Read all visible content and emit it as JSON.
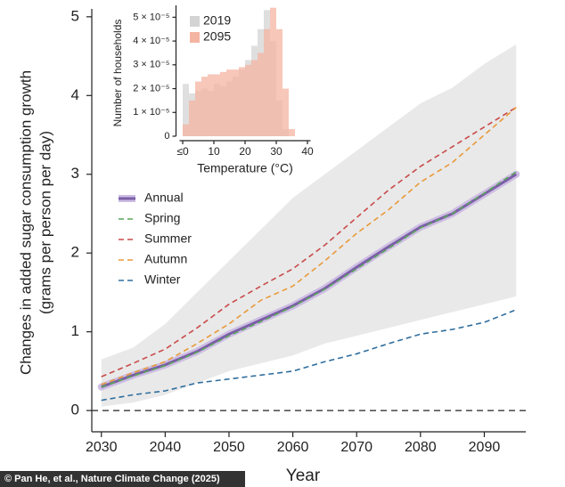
{
  "chart_data": [
    {
      "type": "line",
      "xlabel": "Year",
      "ylabel": [
        "Changes in added sugar consumption growth",
        "(grams per person per day)"
      ],
      "credit": "© Pan He, et al., Nature Climate Change (2025)",
      "x": [
        2030,
        2035,
        2040,
        2045,
        2050,
        2055,
        2060,
        2065,
        2070,
        2075,
        2080,
        2085,
        2090,
        2095
      ],
      "band": {
        "color": "#e9e9e9",
        "lower": [
          0.05,
          0.1,
          0.2,
          0.35,
          0.5,
          0.6,
          0.7,
          0.85,
          0.95,
          1.05,
          1.15,
          1.25,
          1.35,
          1.45
        ],
        "upper": [
          0.65,
          0.8,
          1.1,
          1.5,
          1.9,
          2.3,
          2.7,
          3.0,
          3.3,
          3.6,
          3.9,
          4.1,
          4.4,
          4.65
        ]
      },
      "series": [
        {
          "name": "Annual",
          "color": "#7b5ea7",
          "halo": "#cdbde3",
          "values": [
            0.3,
            0.45,
            0.58,
            0.75,
            0.97,
            1.15,
            1.33,
            1.55,
            1.82,
            2.08,
            2.33,
            2.5,
            2.75,
            3.0
          ]
        },
        {
          "name": "Spring",
          "color": "#5aa65a",
          "dashed": true,
          "values": [
            0.3,
            0.44,
            0.57,
            0.74,
            0.95,
            1.13,
            1.32,
            1.54,
            1.8,
            2.06,
            2.32,
            2.5,
            2.76,
            3.03
          ]
        },
        {
          "name": "Summer",
          "color": "#c94a4a",
          "dashed": true,
          "values": [
            0.43,
            0.6,
            0.78,
            1.05,
            1.35,
            1.58,
            1.8,
            2.1,
            2.45,
            2.8,
            3.1,
            3.35,
            3.6,
            3.85
          ]
        },
        {
          "name": "Autumn",
          "color": "#e89a3a",
          "dashed": true,
          "values": [
            0.33,
            0.48,
            0.62,
            0.85,
            1.1,
            1.4,
            1.58,
            1.9,
            2.25,
            2.55,
            2.9,
            3.15,
            3.5,
            3.85
          ]
        },
        {
          "name": "Winter",
          "color": "#2f6e9e",
          "dashed": true,
          "values": [
            0.13,
            0.2,
            0.25,
            0.35,
            0.4,
            0.45,
            0.5,
            0.62,
            0.72,
            0.85,
            0.97,
            1.03,
            1.12,
            1.28
          ]
        }
      ],
      "hline": 0,
      "xlim": [
        2028.5,
        2096.5
      ],
      "xticks": [
        2030,
        2040,
        2050,
        2060,
        2070,
        2080,
        2090
      ],
      "ylim": [
        -0.27,
        5.1
      ],
      "yticks": [
        0,
        1,
        2,
        3,
        4,
        5
      ]
    },
    {
      "type": "histogram",
      "xlabel": "Temperature (°C)",
      "ylabel": "Number of households",
      "bins": [
        0,
        2,
        4,
        6,
        8,
        10,
        12,
        14,
        16,
        18,
        20,
        22,
        24,
        26,
        28,
        30,
        32,
        34,
        36,
        38,
        40
      ],
      "series": [
        {
          "name": "2019",
          "color": "#d4d4d4",
          "values": [
            2.2e-05,
            1.8e-05,
            1.9e-05,
            2e-05,
            1.9e-05,
            2.2e-05,
            2.1e-05,
            2.3e-05,
            2.5e-05,
            2.8e-05,
            3.2e-05,
            3.8e-05,
            4.5e-05,
            5.3e-05,
            4e-05,
            1.5e-05,
            3e-06,
            0,
            0,
            0
          ]
        },
        {
          "name": "2095",
          "color": "#f4b4a2",
          "values": [
            5e-06,
            1.5e-05,
            2.3e-05,
            2.5e-05,
            2.6e-05,
            2.6e-05,
            2.7e-05,
            2.8e-05,
            2.8e-05,
            2.9e-05,
            3e-05,
            3.2e-05,
            3.5e-05,
            4.5e-05,
            5.4e-05,
            4.5e-05,
            2e-05,
            3e-06,
            0,
            0
          ]
        }
      ],
      "xlim": [
        -1,
        41
      ],
      "xticks": [
        {
          "value": 0,
          "label": "≤0"
        },
        10,
        20,
        30,
        40
      ],
      "ylim": [
        0,
        5.5e-05
      ],
      "yticks": [
        0,
        {
          "value": 1e-05,
          "label": "1 × 10⁻⁵"
        },
        {
          "value": 2e-05,
          "label": "2 × 10⁻⁵"
        },
        {
          "value": 3e-05,
          "label": "3 × 10⁻⁵"
        },
        {
          "value": 4e-05,
          "label": "4 × 10⁻⁵"
        },
        {
          "value": 5e-05,
          "label": "5 × 10⁻⁵"
        }
      ]
    }
  ]
}
